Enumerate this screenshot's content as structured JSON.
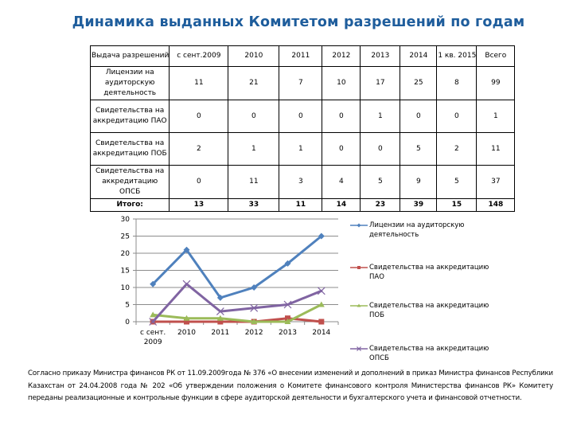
{
  "page": {
    "title": "Динамика выданных Комитетом разрешений по годам"
  },
  "table": {
    "headers": [
      "Выдача разрешений",
      "с сент.2009",
      "2010",
      "2011",
      "2012",
      "2013",
      "2014",
      "1 кв. 2015",
      "Всего"
    ],
    "rows": [
      {
        "label": "Лицензии на аудиторскую деятельность",
        "values": [
          "11",
          "21",
          "7",
          "10",
          "17",
          "25",
          "8",
          "99"
        ]
      },
      {
        "label": "Свидетельства на аккредитацию ПАО",
        "values": [
          "0",
          "0",
          "0",
          "0",
          "1",
          "0",
          "0",
          "1"
        ]
      },
      {
        "label": "Свидетельства на аккредитацию ПОБ",
        "values": [
          "2",
          "1",
          "1",
          "0",
          "0",
          "5",
          "2",
          "11"
        ]
      },
      {
        "label": "Свидетельства на аккредитацию ОПСБ",
        "values": [
          "0",
          "11",
          "3",
          "4",
          "5",
          "9",
          "5",
          "37"
        ]
      }
    ],
    "total": {
      "label": "Итого:",
      "values": [
        "13",
        "33",
        "11",
        "14",
        "23",
        "39",
        "15",
        "148"
      ]
    }
  },
  "chart_data": {
    "type": "line",
    "title": "",
    "xlabel": "",
    "ylabel": "",
    "categories": [
      "с сент. 2009",
      "2010",
      "2011",
      "2012",
      "2013",
      "2014"
    ],
    "ylim": [
      0,
      30
    ],
    "yticks": [
      0,
      5,
      10,
      15,
      20,
      25,
      30
    ],
    "grid": true,
    "legend_position": "right",
    "series": [
      {
        "name": "Лицензии на аудиторскую деятельность",
        "values": [
          11,
          21,
          7,
          10,
          17,
          25
        ],
        "color": "#4f81bd",
        "marker": "diamond"
      },
      {
        "name": "Свидетельства на аккредитацию ПАО",
        "values": [
          0,
          0,
          0,
          0,
          1,
          0
        ],
        "color": "#c0504d",
        "marker": "square"
      },
      {
        "name": "Свидетельства на аккредитацию ПОБ",
        "values": [
          2,
          1,
          1,
          0,
          0,
          5
        ],
        "color": "#9bbb59",
        "marker": "triangle"
      },
      {
        "name": "Свидетельства на аккредитацию ОПСБ",
        "values": [
          0,
          11,
          3,
          4,
          5,
          9
        ],
        "color": "#8064a2",
        "marker": "x"
      }
    ]
  },
  "footer": {
    "text": "Согласно приказу Министра финансов РК от 11.09.2009года № 376 «О внесении изменений и дополнений в приказ Министра финансов Республики Казахстан от 24.04.2008 года № 202 «Об утверждении положения о Комитете финансового контроля Министерства финансов РК» Комитету переданы реализационные и контрольные функции в сфере аудиторской деятельности и бухгалтерского учета и финансовой отчетности."
  }
}
